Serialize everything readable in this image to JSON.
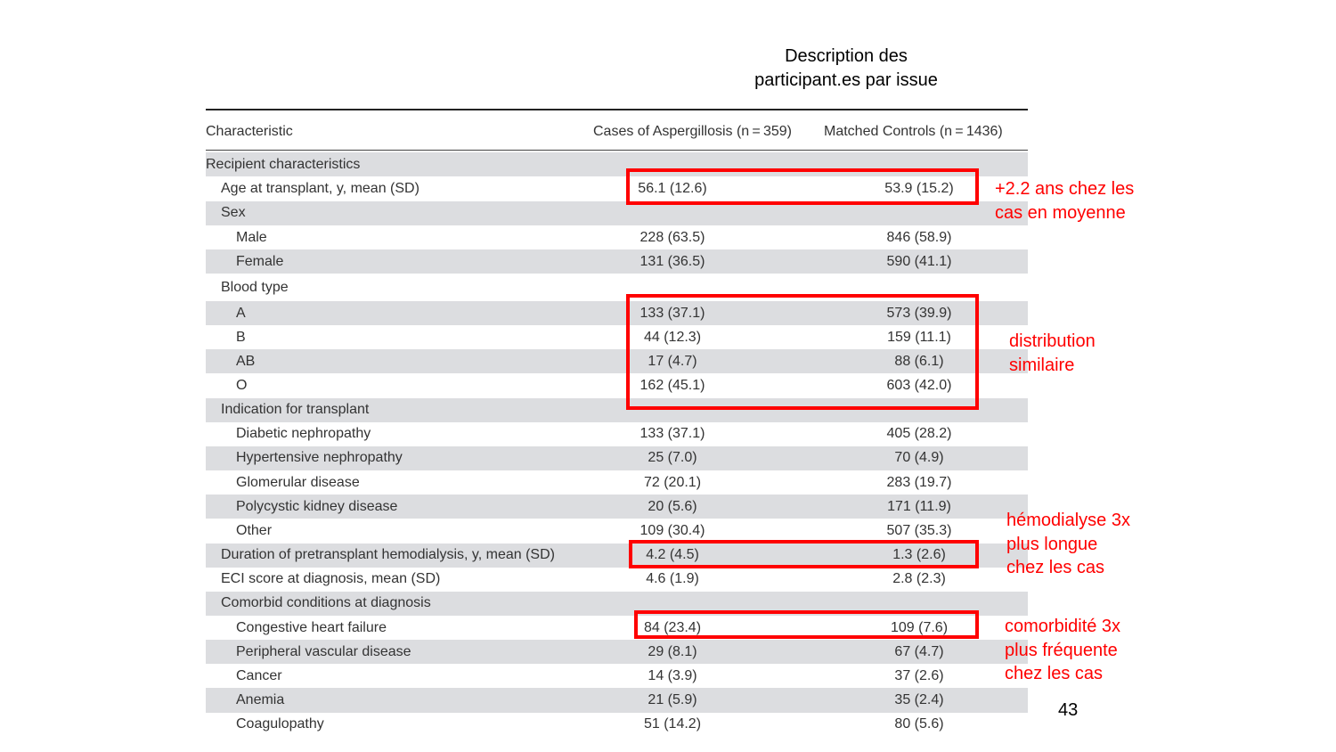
{
  "slide_title": [
    "Description des",
    "participant.es par issue"
  ],
  "table": {
    "headers": [
      "Characteristic",
      "Cases of Aspergillosis (n = 359)",
      "Matched Controls (n = 1436)"
    ],
    "rows": [
      {
        "label": "Recipient characteristics",
        "level": 0,
        "cases": "",
        "controls": ""
      },
      {
        "label": "Age at transplant, y, mean (SD)",
        "level": 1,
        "cases": "56.1 (12.6)",
        "controls": "53.9 (15.2)"
      },
      {
        "label": "Sex",
        "level": 1,
        "cases": "",
        "controls": ""
      },
      {
        "label": "Male",
        "level": 2,
        "cases": "228 (63.5)",
        "controls": "846 (58.9)"
      },
      {
        "label": "Female",
        "level": 2,
        "cases": "131 (36.5)",
        "controls": "590 (41.1)"
      },
      {
        "label": "Blood type",
        "level": 1,
        "cases": "",
        "controls": ""
      },
      {
        "label": "A",
        "level": 2,
        "cases": "133 (37.1)",
        "controls": "573 (39.9)"
      },
      {
        "label": "B",
        "level": 2,
        "cases": "44 (12.3)",
        "controls": "159 (11.1)"
      },
      {
        "label": "AB",
        "level": 2,
        "cases": "17 (4.7)",
        "controls": "88 (6.1)"
      },
      {
        "label": "O",
        "level": 2,
        "cases": "162 (45.1)",
        "controls": "603 (42.0)"
      },
      {
        "label": "Indication for transplant",
        "level": 1,
        "cases": "",
        "controls": ""
      },
      {
        "label": "Diabetic nephropathy",
        "level": 2,
        "cases": "133 (37.1)",
        "controls": "405 (28.2)"
      },
      {
        "label": "Hypertensive nephropathy",
        "level": 2,
        "cases": "25 (7.0)",
        "controls": "70 (4.9)"
      },
      {
        "label": "Glomerular disease",
        "level": 2,
        "cases": "72 (20.1)",
        "controls": "283 (19.7)"
      },
      {
        "label": "Polycystic kidney disease",
        "level": 2,
        "cases": "20 (5.6)",
        "controls": "171 (11.9)"
      },
      {
        "label": "Other",
        "level": 2,
        "cases": "109 (30.4)",
        "controls": "507 (35.3)"
      },
      {
        "label": "Duration of pretransplant hemodialysis, y, mean (SD)",
        "level": 1,
        "cases": "4.2 (4.5)",
        "controls": "1.3 (2.6)"
      },
      {
        "label": "ECI score at diagnosis, mean (SD)",
        "level": 1,
        "cases": "4.6 (1.9)",
        "controls": "2.8 (2.3)"
      },
      {
        "label": "Comorbid conditions at diagnosis",
        "level": 1,
        "cases": "",
        "controls": ""
      },
      {
        "label": "Congestive heart failure",
        "level": 2,
        "cases": "84 (23.4)",
        "controls": "109 (7.6)"
      },
      {
        "label": "Peripheral vascular disease",
        "level": 2,
        "cases": "29 (8.1)",
        "controls": "67 (4.7)"
      },
      {
        "label": "Cancer",
        "level": 2,
        "cases": "14 (3.9)",
        "controls": "37 (2.6)"
      },
      {
        "label": "Anemia",
        "level": 2,
        "cases": "21 (5.9)",
        "controls": "35 (2.4)"
      },
      {
        "label": "Coagulopathy",
        "level": 2,
        "cases": "51 (14.2)",
        "controls": "80 (5.6)"
      }
    ]
  },
  "annotations": {
    "age": [
      "+2.2 ans chez les",
      "cas en moyenne"
    ],
    "blood": [
      "distribution",
      "similaire"
    ],
    "hemodialysis": [
      "hémodialyse 3x",
      "plus longue",
      "chez les cas"
    ],
    "comorbidity": [
      "comorbidité 3x",
      "plus fréquente",
      "chez les cas"
    ]
  },
  "highlight_color": "#ff0000",
  "row_shading_color": "#dcdde0",
  "page_number": "43"
}
